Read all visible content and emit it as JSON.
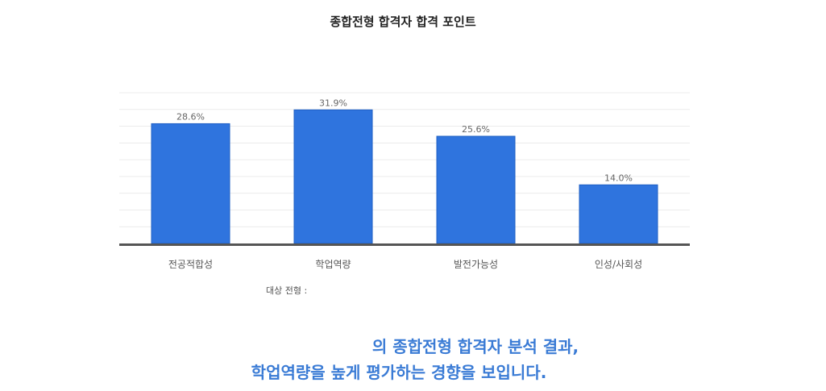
{
  "chart_data": {
    "type": "bar",
    "title": "종합전형 합격자 합격 포인트",
    "categories": [
      "전공적합성",
      "학업역량",
      "발전가능성",
      "인성/사회성"
    ],
    "values": [
      28.6,
      31.9,
      25.6,
      14.0
    ],
    "value_labels": [
      "28.6%",
      "31.9%",
      "25.6%",
      "14.0%"
    ],
    "xlabel": "",
    "ylabel": "",
    "ylim": [
      0,
      36
    ],
    "grid": true,
    "legend": "none",
    "bar_color": "#2f74de",
    "bar_border_color": "#1f5fc4",
    "axis_color": "#555555",
    "grid_color": "#ececec"
  },
  "target_label": "대상 전형 :",
  "summary": {
    "line1": "의 종합전형 합격자 분석 결과,",
    "line2": "학업역량을 높게 평가하는 경향을 보입니다."
  },
  "colors": {
    "summary_text": "#3a7bd5"
  }
}
